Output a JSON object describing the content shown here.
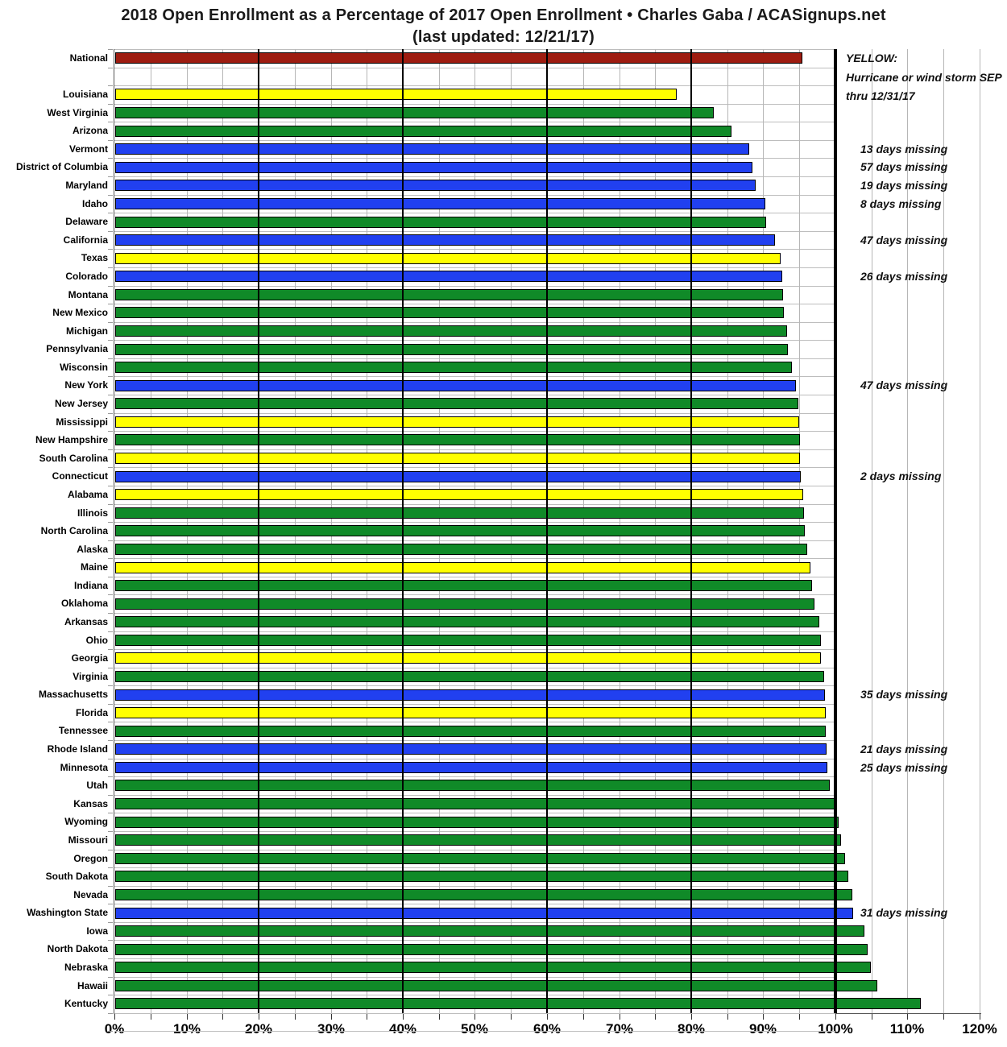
{
  "title": "2018 Open Enrollment as a Percentage of 2017 Open Enrollment  •  Charles Gaba / ACASignups.net",
  "subtitle": "(last updated: 12/21/17)",
  "legend": {
    "line1": "YELLOW:",
    "line2": "Hurricane or wind storm SEP",
    "line3": "thru 12/31/17"
  },
  "colors": {
    "red": "#9e1c10",
    "yellow": "#ffff00",
    "green": "#108a28",
    "blue": "#2140f0",
    "grid_minor": "#b6b6b6",
    "grid_major": "#000000",
    "line_100pct": "#000000"
  },
  "axis": {
    "min": 0,
    "max": 120,
    "label_step": 10,
    "minor_step": 5,
    "labels": [
      "0%",
      "10%",
      "20%",
      "30%",
      "40%",
      "50%",
      "60%",
      "70%",
      "80%",
      "90%",
      "100%",
      "110%",
      "120%"
    ]
  },
  "chart_data": {
    "type": "bar",
    "orientation": "horizontal",
    "unit": "percent of 2017 enrollment",
    "xlim": [
      0,
      120
    ],
    "grid": true,
    "reference_line": 100,
    "bars": [
      {
        "label": "National",
        "value": 95.1,
        "color": "red",
        "annotation": ""
      },
      {
        "label": "",
        "value": null,
        "color": "",
        "annotation": "",
        "spacer": true
      },
      {
        "label": "Louisiana",
        "value": 77.6,
        "color": "yellow",
        "annotation": ""
      },
      {
        "label": "West Virginia",
        "value": 82.8,
        "color": "green",
        "annotation": ""
      },
      {
        "label": "Arizona",
        "value": 85.2,
        "color": "green",
        "annotation": ""
      },
      {
        "label": "Vermont",
        "value": 87.7,
        "color": "blue",
        "annotation": "13 days missing"
      },
      {
        "label": "District of Columbia",
        "value": 88.2,
        "color": "blue",
        "annotation": "57 days missing"
      },
      {
        "label": "Maryland",
        "value": 88.6,
        "color": "blue",
        "annotation": "19 days missing"
      },
      {
        "label": "Idaho",
        "value": 89.9,
        "color": "blue",
        "annotation": "8 days missing"
      },
      {
        "label": "Delaware",
        "value": 90.1,
        "color": "green",
        "annotation": ""
      },
      {
        "label": "California",
        "value": 91.3,
        "color": "blue",
        "annotation": "47 days missing"
      },
      {
        "label": "Texas",
        "value": 92.1,
        "color": "yellow",
        "annotation": ""
      },
      {
        "label": "Colorado",
        "value": 92.3,
        "color": "blue",
        "annotation": "26 days missing"
      },
      {
        "label": "Montana",
        "value": 92.4,
        "color": "green",
        "annotation": ""
      },
      {
        "label": "New Mexico",
        "value": 92.5,
        "color": "green",
        "annotation": ""
      },
      {
        "label": "Michigan",
        "value": 93.0,
        "color": "green",
        "annotation": ""
      },
      {
        "label": "Pennsylvania",
        "value": 93.1,
        "color": "green",
        "annotation": ""
      },
      {
        "label": "Wisconsin",
        "value": 93.6,
        "color": "green",
        "annotation": ""
      },
      {
        "label": "New York",
        "value": 94.2,
        "color": "blue",
        "annotation": "47 days missing"
      },
      {
        "label": "New Jersey",
        "value": 94.5,
        "color": "green",
        "annotation": ""
      },
      {
        "label": "Mississippi",
        "value": 94.6,
        "color": "yellow",
        "annotation": ""
      },
      {
        "label": "New Hampshire",
        "value": 94.7,
        "color": "green",
        "annotation": ""
      },
      {
        "label": "South Carolina",
        "value": 94.8,
        "color": "yellow",
        "annotation": ""
      },
      {
        "label": "Connecticut",
        "value": 94.9,
        "color": "blue",
        "annotation": "2 days missing"
      },
      {
        "label": "Alabama",
        "value": 95.2,
        "color": "yellow",
        "annotation": ""
      },
      {
        "label": "Illinois",
        "value": 95.3,
        "color": "green",
        "annotation": ""
      },
      {
        "label": "North Carolina",
        "value": 95.4,
        "color": "green",
        "annotation": ""
      },
      {
        "label": "Alaska",
        "value": 95.8,
        "color": "green",
        "annotation": ""
      },
      {
        "label": "Maine",
        "value": 96.2,
        "color": "yellow",
        "annotation": ""
      },
      {
        "label": "Indiana",
        "value": 96.4,
        "color": "green",
        "annotation": ""
      },
      {
        "label": "Oklahoma",
        "value": 96.8,
        "color": "green",
        "annotation": ""
      },
      {
        "label": "Arkansas",
        "value": 97.4,
        "color": "green",
        "annotation": ""
      },
      {
        "label": "Ohio",
        "value": 97.7,
        "color": "green",
        "annotation": ""
      },
      {
        "label": "Georgia",
        "value": 97.7,
        "color": "yellow",
        "annotation": ""
      },
      {
        "label": "Virginia",
        "value": 98.1,
        "color": "green",
        "annotation": ""
      },
      {
        "label": "Massachusetts",
        "value": 98.2,
        "color": "blue",
        "annotation": "35 days missing"
      },
      {
        "label": "Florida",
        "value": 98.3,
        "color": "yellow",
        "annotation": ""
      },
      {
        "label": "Tennessee",
        "value": 98.3,
        "color": "green",
        "annotation": ""
      },
      {
        "label": "Rhode Island",
        "value": 98.4,
        "color": "blue",
        "annotation": "21 days missing"
      },
      {
        "label": "Minnesota",
        "value": 98.6,
        "color": "blue",
        "annotation": "25 days missing"
      },
      {
        "label": "Utah",
        "value": 98.9,
        "color": "green",
        "annotation": ""
      },
      {
        "label": "Kansas",
        "value": 99.9,
        "color": "green",
        "annotation": ""
      },
      {
        "label": "Wyoming",
        "value": 100.1,
        "color": "green",
        "annotation": ""
      },
      {
        "label": "Missouri",
        "value": 100.4,
        "color": "green",
        "annotation": ""
      },
      {
        "label": "Oregon",
        "value": 101.0,
        "color": "green",
        "annotation": ""
      },
      {
        "label": "South Dakota",
        "value": 101.4,
        "color": "green",
        "annotation": ""
      },
      {
        "label": "Nevada",
        "value": 102.0,
        "color": "green",
        "annotation": ""
      },
      {
        "label": "Washington State",
        "value": 102.1,
        "color": "blue",
        "annotation": "31 days missing"
      },
      {
        "label": "Iowa",
        "value": 103.7,
        "color": "green",
        "annotation": ""
      },
      {
        "label": "North Dakota",
        "value": 104.1,
        "color": "green",
        "annotation": ""
      },
      {
        "label": "Nebraska",
        "value": 104.6,
        "color": "green",
        "annotation": ""
      },
      {
        "label": "Hawaii",
        "value": 105.5,
        "color": "green",
        "annotation": ""
      },
      {
        "label": "Kentucky",
        "value": 111.5,
        "color": "green",
        "annotation": ""
      }
    ]
  }
}
